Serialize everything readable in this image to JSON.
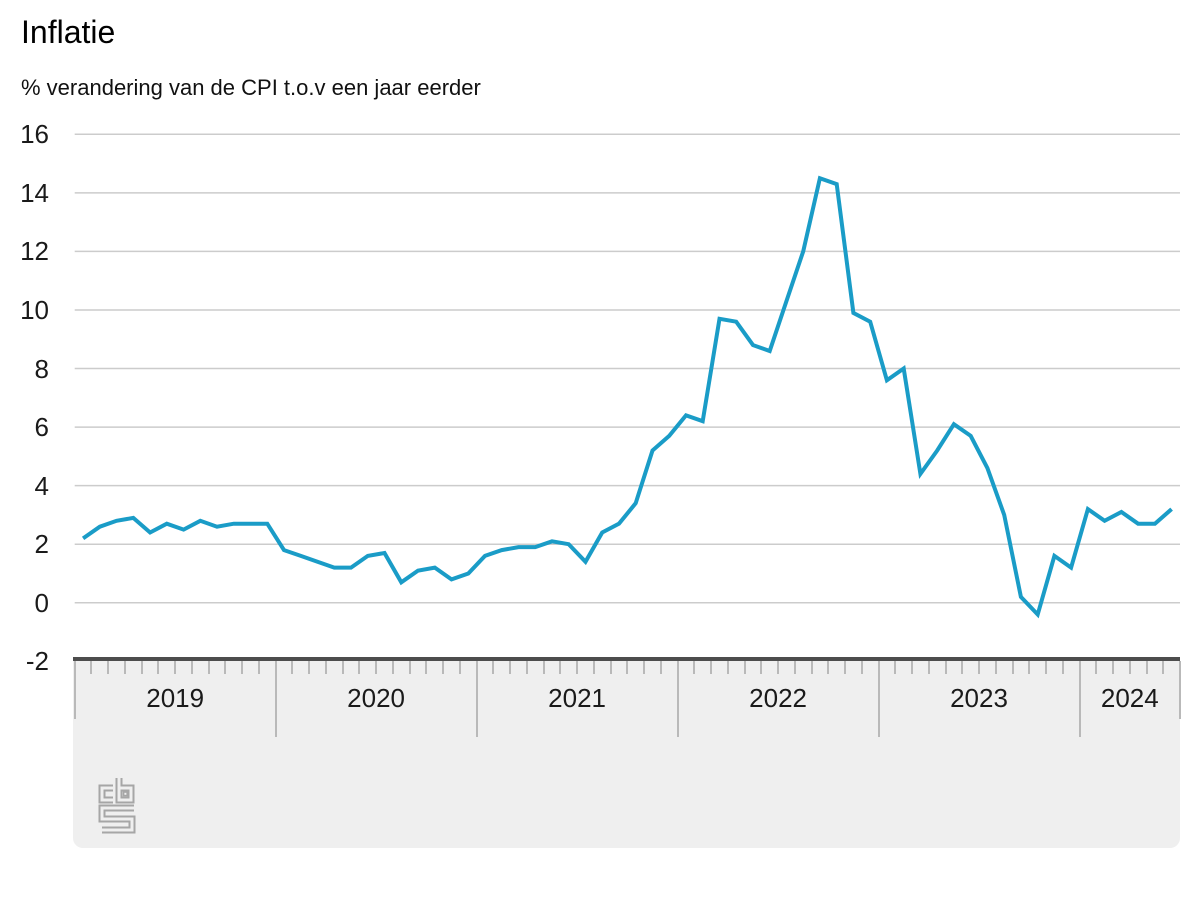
{
  "header": {
    "title": "Inflatie",
    "subtitle": "% verandering van de CPI t.o.v een jaar eerder"
  },
  "chart_data": {
    "type": "line",
    "title": "Inflatie",
    "ylabel": "% verandering van de CPI t.o.v een jaar eerder",
    "unit": "%",
    "x_start": "2019-01",
    "x_end": "2024-06",
    "x_year_labels": [
      "2019",
      "2020",
      "2021",
      "2022",
      "2023",
      "2024"
    ],
    "months_per_year": [
      12,
      12,
      12,
      12,
      12,
      6
    ],
    "values": [
      2.2,
      2.6,
      2.8,
      2.9,
      2.4,
      2.7,
      2.5,
      2.8,
      2.6,
      2.7,
      2.7,
      2.7,
      1.8,
      1.6,
      1.4,
      1.2,
      1.2,
      1.6,
      1.7,
      0.7,
      1.1,
      1.2,
      0.8,
      1.0,
      1.6,
      1.8,
      1.9,
      1.9,
      2.1,
      2.0,
      1.4,
      2.4,
      2.7,
      3.4,
      5.2,
      5.7,
      6.4,
      6.2,
      9.7,
      9.6,
      8.8,
      8.6,
      10.3,
      12.0,
      14.5,
      14.3,
      9.9,
      9.6,
      7.6,
      8.0,
      4.4,
      5.2,
      6.1,
      5.7,
      4.6,
      3.0,
      0.2,
      -0.4,
      1.6,
      1.2,
      3.2,
      2.8,
      3.1,
      2.7,
      2.7,
      3.2
    ],
    "y_ticks": [
      16,
      14,
      12,
      10,
      8,
      6,
      4,
      2,
      0,
      -2
    ],
    "ylim": [
      -2,
      16
    ],
    "grid": "horizontal",
    "legend": "none",
    "line_color": "#1a9cc7",
    "grid_color": "#cccccc",
    "axis_color": "#4d4d4d",
    "band_color": "#efefef",
    "tick_color": "#b9b9b9",
    "label_color": "#1a1a1a"
  },
  "footer": {
    "logo_name": "cbs-logo"
  }
}
